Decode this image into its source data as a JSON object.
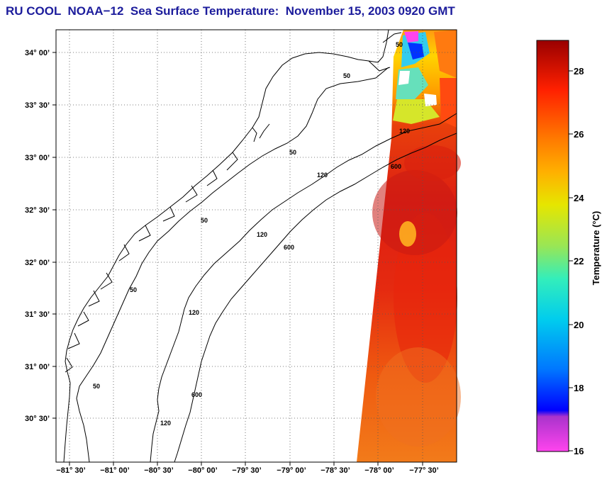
{
  "title": "RU COOL  NOAA−12  Sea Surface Temperature:  November 15, 2003 0920 GMT",
  "map": {
    "lat_labels": [
      "34° 00’",
      "33° 30’",
      "33° 00’",
      "32° 30’",
      "32° 00’",
      "31° 30’",
      "31° 00’",
      "30° 30’"
    ],
    "lon_labels": [
      "−81° 30’",
      "−81° 00’",
      "−80° 30’",
      "−80° 00’",
      "−79° 30’",
      "−79° 00’",
      "−78° 30’",
      "−78° 00’",
      "−77° 30’"
    ],
    "isobath_labels": [
      "50",
      "50",
      "50",
      "120",
      "600",
      "50",
      "120",
      "600",
      "50",
      "120",
      "120",
      "600",
      "50",
      "120"
    ]
  },
  "colorbar": {
    "label": "Temperature (°C)",
    "ticks": [
      "28",
      "26",
      "24",
      "22",
      "20",
      "18",
      "16"
    ],
    "range": [
      16,
      29
    ]
  },
  "colors": {
    "title": "#1c1c9c",
    "warm": "#e82810",
    "cold": "#ff44ee"
  }
}
